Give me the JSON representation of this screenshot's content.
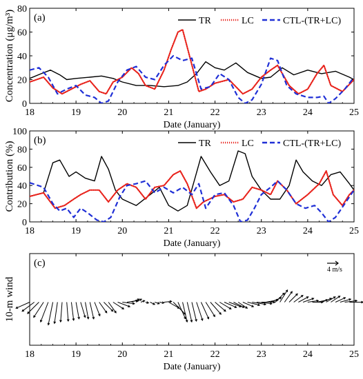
{
  "chart_data": [
    {
      "type": "line",
      "panel_label": "(a)",
      "xlabel": "Date (January)",
      "ylabel": "Concentration (μg/m³)",
      "xlim": [
        18,
        25
      ],
      "ylim": [
        0,
        80
      ],
      "xticks": [
        "18",
        "19",
        "20",
        "21",
        "22",
        "23",
        "24",
        "25"
      ],
      "yticks": [
        "0",
        "20",
        "40",
        "60",
        "80"
      ],
      "legend_position": "top-right",
      "colors": {
        "TR": "#000000",
        "LC": "#e8221b",
        "CTL": "#1f2fd6"
      },
      "series": [
        {
          "name": "TR",
          "style": "solid",
          "color": "#000000",
          "x": [
            18,
            18.25,
            18.45,
            18.65,
            18.8,
            19,
            19.3,
            19.55,
            19.8,
            20,
            20.3,
            20.6,
            20.9,
            21.2,
            21.4,
            21.6,
            21.8,
            22,
            22.2,
            22.45,
            22.7,
            23,
            23.2,
            23.45,
            23.7,
            24,
            24.3,
            24.6,
            24.9,
            25
          ],
          "y": [
            21,
            25,
            28,
            24,
            20,
            21,
            22,
            23,
            21,
            18,
            15,
            15,
            14,
            15,
            18,
            25,
            35,
            30,
            28,
            34,
            26,
            21,
            22,
            30,
            24,
            28,
            25,
            27,
            22,
            20
          ]
        },
        {
          "name": "LC",
          "style": "dotted",
          "color": "#e8221b",
          "x": [
            18,
            18.3,
            18.5,
            18.7,
            18.9,
            19.1,
            19.3,
            19.5,
            19.65,
            19.8,
            20,
            20.2,
            20.35,
            20.5,
            20.7,
            20.9,
            21.05,
            21.2,
            21.3,
            21.45,
            21.65,
            21.8,
            22,
            22.3,
            22.6,
            22.8,
            23,
            23.2,
            23.35,
            23.6,
            23.8,
            24,
            24.2,
            24.35,
            24.5,
            24.75,
            25
          ],
          "y": [
            18,
            22,
            13,
            8,
            12,
            16,
            19,
            10,
            8,
            18,
            22,
            30,
            25,
            15,
            12,
            28,
            45,
            60,
            62,
            40,
            10,
            12,
            17,
            20,
            8,
            12,
            22,
            28,
            32,
            15,
            8,
            12,
            25,
            32,
            15,
            10,
            20
          ]
        },
        {
          "name": "CTL-(TR+LC)",
          "style": "dashed",
          "color": "#1f2fd6",
          "x": [
            18,
            18.2,
            18.4,
            18.6,
            18.8,
            19,
            19.2,
            19.4,
            19.55,
            19.7,
            19.9,
            20.1,
            20.3,
            20.5,
            20.7,
            20.9,
            21.1,
            21.3,
            21.5,
            21.7,
            21.9,
            22.1,
            22.3,
            22.5,
            22.65,
            22.8,
            23,
            23.2,
            23.35,
            23.55,
            23.75,
            24,
            24.2,
            24.35,
            24.45,
            24.6,
            24.8,
            25
          ],
          "y": [
            28,
            30,
            22,
            8,
            12,
            15,
            7,
            5,
            0,
            2,
            18,
            28,
            31,
            22,
            20,
            32,
            40,
            36,
            38,
            12,
            14,
            25,
            20,
            5,
            0,
            3,
            16,
            38,
            36,
            15,
            8,
            5,
            5,
            6,
            0,
            4,
            12,
            22
          ]
        }
      ]
    },
    {
      "type": "line",
      "panel_label": "(b)",
      "xlabel": "Date (January)",
      "ylabel": "Contribution (%)",
      "xlim": [
        18,
        25
      ],
      "ylim": [
        0,
        100
      ],
      "xticks": [
        "18",
        "19",
        "20",
        "21",
        "22",
        "23",
        "24",
        "25"
      ],
      "yticks": [
        "0",
        "20",
        "40",
        "60",
        "80",
        "100"
      ],
      "legend_position": "top-right",
      "colors": {
        "TR": "#000000",
        "LC": "#e8221b",
        "CTL": "#1f2fd6"
      },
      "series": [
        {
          "name": "TR",
          "style": "solid",
          "color": "#000000",
          "x": [
            18,
            18.3,
            18.5,
            18.65,
            18.85,
            19,
            19.2,
            19.4,
            19.55,
            19.7,
            19.85,
            20,
            20.3,
            20.6,
            20.8,
            21,
            21.2,
            21.4,
            21.55,
            21.7,
            21.9,
            22.1,
            22.3,
            22.5,
            22.65,
            22.8,
            23,
            23.2,
            23.4,
            23.6,
            23.75,
            23.9,
            24.1,
            24.3,
            24.5,
            24.7,
            24.9,
            25
          ],
          "y": [
            28,
            32,
            65,
            68,
            50,
            55,
            48,
            45,
            72,
            58,
            35,
            25,
            18,
            30,
            38,
            18,
            12,
            18,
            45,
            72,
            55,
            40,
            45,
            78,
            75,
            50,
            35,
            25,
            25,
            40,
            68,
            55,
            45,
            40,
            52,
            55,
            42,
            35
          ]
        },
        {
          "name": "LC",
          "style": "dotted",
          "color": "#e8221b",
          "x": [
            18,
            18.3,
            18.55,
            18.75,
            18.95,
            19.1,
            19.3,
            19.5,
            19.7,
            19.9,
            20.1,
            20.3,
            20.5,
            20.7,
            20.9,
            21.1,
            21.25,
            21.4,
            21.6,
            21.75,
            22,
            22.2,
            22.4,
            22.6,
            22.8,
            23,
            23.2,
            23.35,
            23.55,
            23.75,
            24,
            24.25,
            24.4,
            24.55,
            24.75,
            24.9,
            25
          ],
          "y": [
            28,
            32,
            15,
            18,
            25,
            30,
            35,
            35,
            22,
            35,
            42,
            38,
            25,
            38,
            40,
            52,
            56,
            42,
            15,
            22,
            28,
            30,
            22,
            25,
            38,
            35,
            30,
            45,
            35,
            20,
            30,
            42,
            56,
            30,
            18,
            30,
            35
          ]
        },
        {
          "name": "CTL-(TR+LC)",
          "style": "dashed",
          "color": "#1f2fd6",
          "x": [
            18,
            18.3,
            18.5,
            18.65,
            18.8,
            18.95,
            19.1,
            19.25,
            19.45,
            19.6,
            19.75,
            19.95,
            20.1,
            20.3,
            20.5,
            20.7,
            20.9,
            21.1,
            21.3,
            21.5,
            21.65,
            21.8,
            22,
            22.2,
            22.4,
            22.55,
            22.7,
            22.85,
            23,
            23.2,
            23.35,
            23.55,
            23.75,
            23.95,
            24.15,
            24.3,
            24.45,
            24.6,
            24.8,
            25
          ],
          "y": [
            43,
            38,
            20,
            12,
            15,
            5,
            15,
            10,
            2,
            0,
            5,
            28,
            40,
            42,
            45,
            32,
            38,
            32,
            38,
            30,
            42,
            15,
            30,
            32,
            18,
            0,
            2,
            15,
            30,
            38,
            45,
            35,
            20,
            15,
            18,
            10,
            0,
            5,
            20,
            35
          ]
        }
      ]
    },
    {
      "type": "vector",
      "panel_label": "(c)",
      "xlabel": "Date (January)",
      "ylabel": "10-m wind",
      "xlim": [
        18,
        25
      ],
      "xticks": [
        "18",
        "19",
        "20",
        "21",
        "22",
        "23",
        "24",
        "25"
      ],
      "reference_vector_label": "4 m/s",
      "reference_speed": 4,
      "series": [
        {
          "name": "wind",
          "x": [
            18.0,
            18.1,
            18.2,
            18.3,
            18.4,
            18.5,
            18.6,
            18.7,
            18.8,
            18.9,
            19.0,
            19.1,
            19.2,
            19.3,
            19.4,
            19.5,
            19.6,
            19.7,
            19.8,
            19.9,
            20.0,
            20.1,
            20.2,
            20.3,
            20.4,
            20.5,
            20.6,
            20.7,
            20.8,
            20.9,
            21.0,
            21.1,
            21.2,
            21.3,
            21.4,
            21.5,
            21.6,
            21.7,
            21.8,
            21.9,
            22.0,
            22.1,
            22.2,
            22.3,
            22.4,
            22.5,
            22.6,
            22.7,
            22.8,
            22.9,
            23.0,
            23.1,
            23.2,
            23.3,
            23.4,
            23.5,
            23.6,
            23.7,
            23.8,
            23.9,
            24.0,
            24.1,
            24.2,
            24.3,
            24.4,
            24.5,
            24.6,
            24.7,
            24.8,
            24.9,
            25.0
          ],
          "u": [
            -1.8,
            -1.6,
            -1.5,
            -1.3,
            -1.0,
            -0.6,
            -0.4,
            -0.2,
            0.2,
            0.3,
            0.4,
            0.6,
            0.4,
            0.5,
            0.7,
            1.0,
            1.2,
            1.0,
            1.4,
            1.6,
            1.6,
            1.4,
            1.0,
            0.7,
            0.5,
            0.4,
            0.6,
            0.6,
            0.6,
            1.0,
            1.4,
            1.6,
            1.0,
            0.6,
            0.6,
            0.6,
            0.8,
            1.0,
            1.2,
            1.4,
            1.4,
            1.5,
            1.6,
            1.6,
            1.4,
            1.2,
            1.4,
            1.6,
            1.8,
            2.0,
            1.8,
            1.6,
            1.4,
            1.2,
            1.0,
            1.0,
            1.1,
            1.2,
            1.3,
            1.4,
            1.4,
            1.4,
            1.4,
            1.3,
            1.2,
            1.2,
            1.3,
            1.4,
            1.6,
            1.8,
            2.0
          ],
          "v": [
            -0.8,
            -1.2,
            -1.5,
            -2.0,
            -2.6,
            -3.0,
            -2.8,
            -2.6,
            -2.5,
            -2.4,
            -2.2,
            -2.0,
            -2.2,
            -2.2,
            -1.8,
            -1.4,
            -1.2,
            -1.4,
            -0.9,
            -0.6,
            -0.2,
            0.2,
            0.4,
            0.4,
            0.2,
            -0.1,
            -0.3,
            -0.2,
            -0.1,
            0.1,
            -0.8,
            -1.6,
            -2.2,
            -2.6,
            -2.6,
            -2.5,
            -2.4,
            -2.2,
            -1.9,
            -1.6,
            -1.2,
            -0.9,
            -0.7,
            -0.6,
            -0.7,
            -0.8,
            -0.6,
            -0.4,
            -0.3,
            -0.2,
            0.0,
            0.3,
            0.6,
            1.2,
            1.6,
            1.4,
            1.1,
            0.9,
            0.7,
            0.5,
            0.2,
            0.0,
            0.3,
            0.5,
            0.7,
            0.8,
            0.6,
            0.4,
            0.2,
            0.0,
            0.0
          ]
        }
      ]
    }
  ]
}
